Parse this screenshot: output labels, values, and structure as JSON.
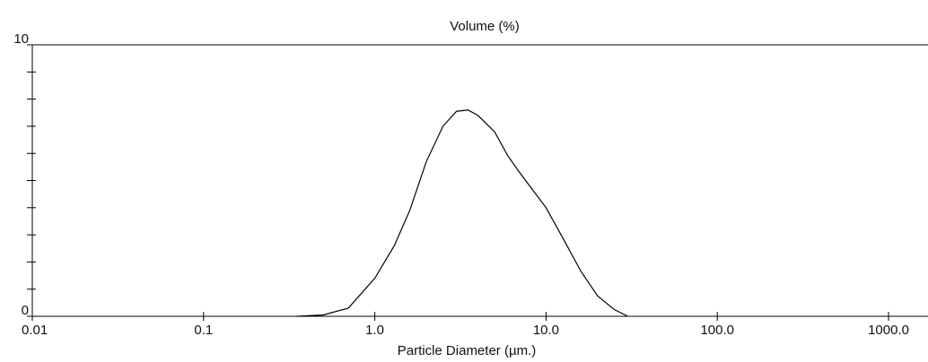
{
  "chart_data": {
    "type": "line",
    "title": "Volume (%)",
    "xlabel": "Particle Diameter (µm.)",
    "xscale": "log",
    "x": [
      0.35,
      0.5,
      0.7,
      1.0,
      1.3,
      1.6,
      2.0,
      2.5,
      3.0,
      3.5,
      4.0,
      5.0,
      6.0,
      7.0,
      10,
      13,
      16,
      20,
      25,
      30
    ],
    "series": [
      {
        "color": "#000000",
        "values": [
          0,
          0.05,
          0.3,
          1.4,
          2.6,
          3.9,
          5.7,
          7.0,
          7.55,
          7.6,
          7.4,
          6.8,
          5.9,
          5.3,
          4.0,
          2.7,
          1.65,
          0.75,
          0.25,
          0
        ]
      }
    ],
    "xlim": [
      0.01,
      1700
    ],
    "xticks": [
      0.01,
      0.1,
      {
        "value": 1,
        "label": "1.0"
      },
      {
        "value": 10,
        "label": "10.0"
      },
      {
        "value": 100,
        "label": "100.0"
      },
      {
        "value": 1000,
        "label": "1000.0"
      }
    ],
    "ylim": [
      0,
      10
    ],
    "yticks": [
      0,
      10
    ],
    "y_minor_ticks": [
      1,
      2,
      3,
      4,
      5,
      6,
      7,
      8,
      9
    ]
  }
}
